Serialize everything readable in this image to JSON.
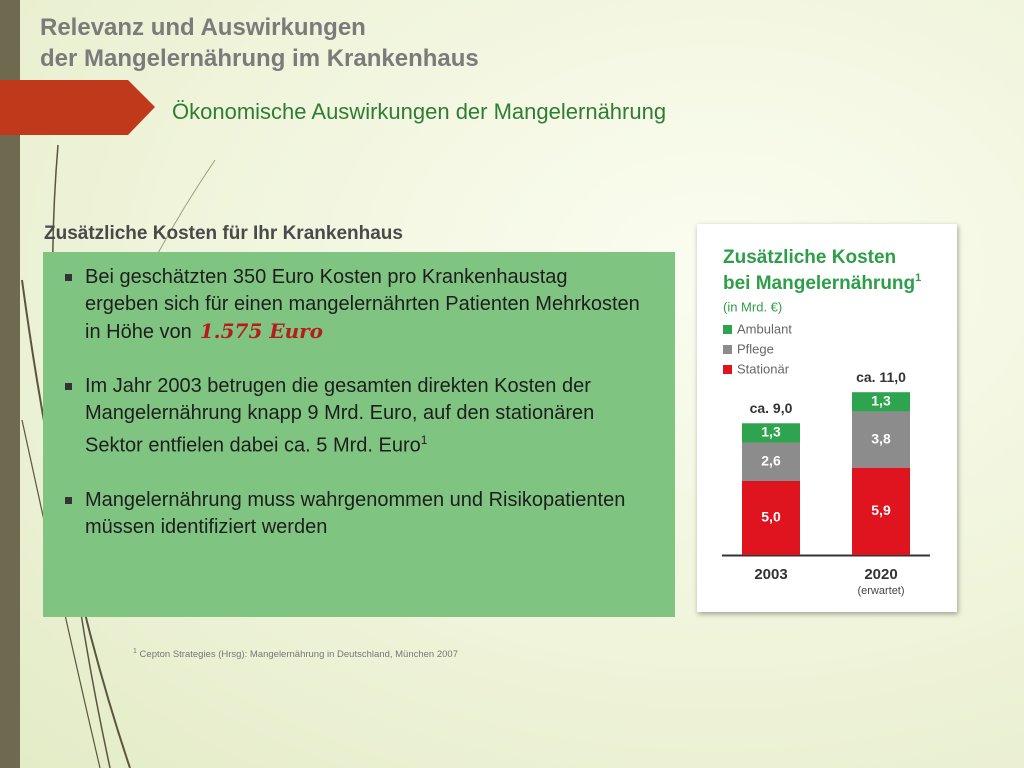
{
  "header": {
    "title_lines": [
      "Relevanz und Auswirkungen",
      "der Mangelernährung im Krankenhaus"
    ],
    "subtitle": "Ökonomische Auswirkungen der Mangelernährung"
  },
  "section": {
    "heading": "Zusätzliche Kosten für Ihr Krankenhaus",
    "bullets": [
      {
        "text": "Bei geschätzten 350 Euro Kosten pro Krankenhaustag ergeben sich für einen mangelernährten Patienten Mehrkosten in Höhe von",
        "highlight": "1.575 Euro"
      },
      {
        "text": "Im Jahr 2003 betrugen die gesamten direkten Kosten der Mangelernährung knapp 9 Mrd. Euro, auf den stationären Sektor entfielen dabei ca. 5 Mrd. Euro",
        "footnote_mark": "1"
      },
      {
        "text": "Mangelernährung muss wahrgenommen und Risikopatienten müssen identifiziert werden"
      }
    ]
  },
  "chart_data": {
    "type": "stacked-bar",
    "title_lines": [
      "Zusätzliche Kosten",
      "bei Mangelernährung"
    ],
    "title_footnote_mark": "1",
    "subtitle": "(in Mrd. €)",
    "categories": [
      "2003",
      "2020"
    ],
    "category_notes": [
      null,
      "(erwartet)"
    ],
    "total_labels": [
      "ca. 9,0",
      "ca. 11,0"
    ],
    "series": [
      {
        "name": "Ambulant",
        "color": "#2ea44f",
        "values": [
          1.3,
          1.3
        ],
        "value_labels": [
          "1,3",
          "1,3"
        ]
      },
      {
        "name": "Pflege",
        "color": "#8c8c8c",
        "values": [
          2.6,
          3.8
        ],
        "value_labels": [
          "2,6",
          "3,8"
        ]
      },
      {
        "name": "Stationär",
        "color": "#e0141e",
        "values": [
          5.0,
          5.9
        ],
        "value_labels": [
          "5,0",
          "5,9"
        ]
      }
    ]
  },
  "footnote": {
    "mark": "1",
    "text": "Cepton Strategies (Hrsg): Mangelernährung in Deutschland, München 2007"
  }
}
